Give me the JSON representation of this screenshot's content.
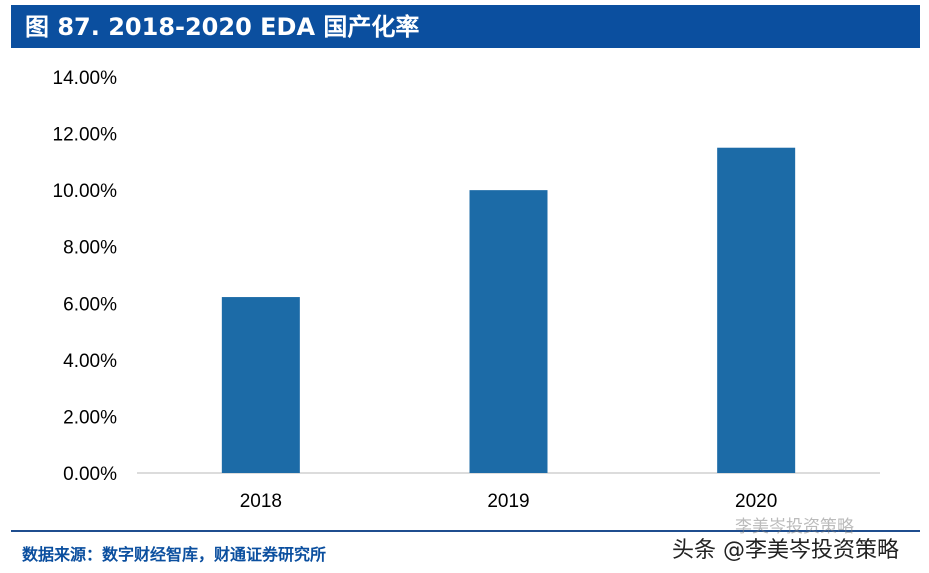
{
  "header": {
    "title": "图 87. 2018-2020 EDA 国产化率"
  },
  "chart_data": {
    "type": "bar",
    "title": "图 87. 2018-2020 EDA 国产化率",
    "categories": [
      "2018",
      "2019",
      "2020"
    ],
    "values": [
      6.22,
      10.0,
      11.5
    ],
    "value_unit": "%",
    "ylim": [
      0,
      14
    ],
    "yticks": [
      "0.00%",
      "2.00%",
      "4.00%",
      "6.00%",
      "8.00%",
      "10.00%",
      "12.00%",
      "14.00%"
    ],
    "grid": false,
    "bar_color": "#1c6ba7",
    "xlabel": "",
    "ylabel": ""
  },
  "footer": {
    "source": "数据来源：数字财经智库，财通证券研究所",
    "watermark_faint": "李美岑投资策略",
    "watermark": "头条 @李美岑投资策略"
  }
}
